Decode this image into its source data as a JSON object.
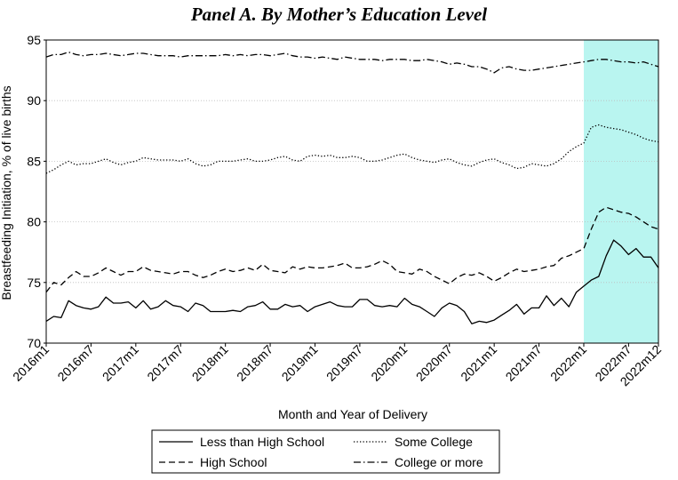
{
  "chart_data": {
    "type": "line",
    "title": "Panel A. By Mother’s Education Level",
    "xlabel": "Month and Year of Delivery",
    "ylabel": "Breastfeeding Initiation, % of live births",
    "ylim": [
      70,
      95
    ],
    "yticks": [
      "95",
      "90",
      "85",
      "80",
      "75",
      "70"
    ],
    "xtick_labels": [
      "2016m1",
      "2016m7",
      "2017m1",
      "2017m7",
      "2018m1",
      "2018m7",
      "2019m1",
      "2019m7",
      "2020m1",
      "2020m7",
      "2021m1",
      "2021m7",
      "2022m1",
      "2022m7",
      "2022m12"
    ],
    "grid": "horizontal",
    "highlight": {
      "from": "2022m1",
      "to": "2022m12",
      "color": "#b9f5f0"
    },
    "legend_position": "bottom",
    "series": [
      {
        "name": "Less than High School",
        "dash": "solid",
        "values": [
          71.8,
          72.2,
          72.1,
          73.5,
          73.1,
          72.9,
          72.8,
          73.0,
          73.8,
          73.3,
          73.3,
          73.4,
          72.9,
          73.5,
          72.8,
          73.0,
          73.5,
          73.1,
          73.0,
          72.6,
          73.3,
          73.1,
          72.6,
          72.6,
          72.6,
          72.7,
          72.6,
          73.0,
          73.1,
          73.4,
          72.8,
          72.8,
          73.2,
          73.0,
          73.1,
          72.6,
          73.0,
          73.2,
          73.4,
          73.1,
          73.0,
          73.0,
          73.6,
          73.6,
          73.1,
          73.0,
          73.1,
          73.0,
          73.7,
          73.2,
          73.0,
          72.6,
          72.2,
          72.9,
          73.3,
          73.1,
          72.6,
          71.6,
          71.8,
          71.7,
          71.9,
          72.3,
          72.7,
          73.2,
          72.4,
          72.9,
          72.9,
          73.9,
          73.1,
          73.7,
          73.0,
          74.2,
          74.7,
          75.2,
          75.5,
          77.2,
          78.5,
          78.0,
          77.3,
          77.8,
          77.1,
          77.1,
          76.2
        ]
      },
      {
        "name": "High School",
        "dash": "dashed",
        "values": [
          74.2,
          75.0,
          74.8,
          75.4,
          75.9,
          75.5,
          75.5,
          75.8,
          76.2,
          75.9,
          75.6,
          75.9,
          75.9,
          76.3,
          76.0,
          75.9,
          75.8,
          75.7,
          75.9,
          75.9,
          75.6,
          75.4,
          75.6,
          75.9,
          76.1,
          75.9,
          76.0,
          76.2,
          76.0,
          76.5,
          76.0,
          75.9,
          75.8,
          76.3,
          76.1,
          76.3,
          76.2,
          76.2,
          76.3,
          76.4,
          76.6,
          76.2,
          76.2,
          76.3,
          76.5,
          76.8,
          76.5,
          75.9,
          75.8,
          75.7,
          76.1,
          75.9,
          75.5,
          75.2,
          74.9,
          75.4,
          75.7,
          75.6,
          75.8,
          75.5,
          75.1,
          75.4,
          75.8,
          76.1,
          75.9,
          76.0,
          76.1,
          76.3,
          76.4,
          77.0,
          77.2,
          77.5,
          77.8,
          79.4,
          80.8,
          81.2,
          81.0,
          80.8,
          80.7,
          80.4,
          80.0,
          79.6,
          79.4
        ]
      },
      {
        "name": "Some College",
        "dash": "dotted",
        "values": [
          84.0,
          84.3,
          84.7,
          85.0,
          84.7,
          84.8,
          84.8,
          85.0,
          85.2,
          84.9,
          84.7,
          84.9,
          85.0,
          85.3,
          85.2,
          85.1,
          85.1,
          85.1,
          85.0,
          85.2,
          84.8,
          84.6,
          84.7,
          85.0,
          85.0,
          85.0,
          85.1,
          85.2,
          85.0,
          85.0,
          85.1,
          85.3,
          85.4,
          85.1,
          85.0,
          85.4,
          85.5,
          85.4,
          85.5,
          85.3,
          85.3,
          85.4,
          85.3,
          85.0,
          85.0,
          85.1,
          85.3,
          85.5,
          85.6,
          85.3,
          85.1,
          85.0,
          84.9,
          85.1,
          85.2,
          84.9,
          84.7,
          84.6,
          84.9,
          85.1,
          85.2,
          84.9,
          84.7,
          84.4,
          84.5,
          84.8,
          84.7,
          84.6,
          84.8,
          85.2,
          85.8,
          86.2,
          86.5,
          87.8,
          88.0,
          87.8,
          87.7,
          87.6,
          87.4,
          87.2,
          86.9,
          86.7,
          86.6
        ]
      },
      {
        "name": "College or more",
        "dash": "dashdot",
        "values": [
          93.6,
          93.8,
          93.8,
          94.0,
          93.8,
          93.7,
          93.8,
          93.8,
          93.9,
          93.8,
          93.7,
          93.8,
          93.9,
          93.9,
          93.8,
          93.7,
          93.7,
          93.7,
          93.6,
          93.7,
          93.7,
          93.7,
          93.7,
          93.7,
          93.8,
          93.7,
          93.8,
          93.7,
          93.8,
          93.8,
          93.7,
          93.8,
          93.9,
          93.7,
          93.6,
          93.6,
          93.5,
          93.6,
          93.5,
          93.4,
          93.6,
          93.5,
          93.4,
          93.4,
          93.4,
          93.3,
          93.4,
          93.4,
          93.4,
          93.3,
          93.3,
          93.4,
          93.3,
          93.2,
          93.0,
          93.1,
          93.0,
          92.8,
          92.8,
          92.6,
          92.3,
          92.7,
          92.8,
          92.6,
          92.5,
          92.5,
          92.6,
          92.7,
          92.8,
          92.9,
          93.0,
          93.1,
          93.2,
          93.3,
          93.4,
          93.4,
          93.3,
          93.2,
          93.2,
          93.1,
          93.2,
          93.0,
          92.8
        ]
      }
    ]
  }
}
